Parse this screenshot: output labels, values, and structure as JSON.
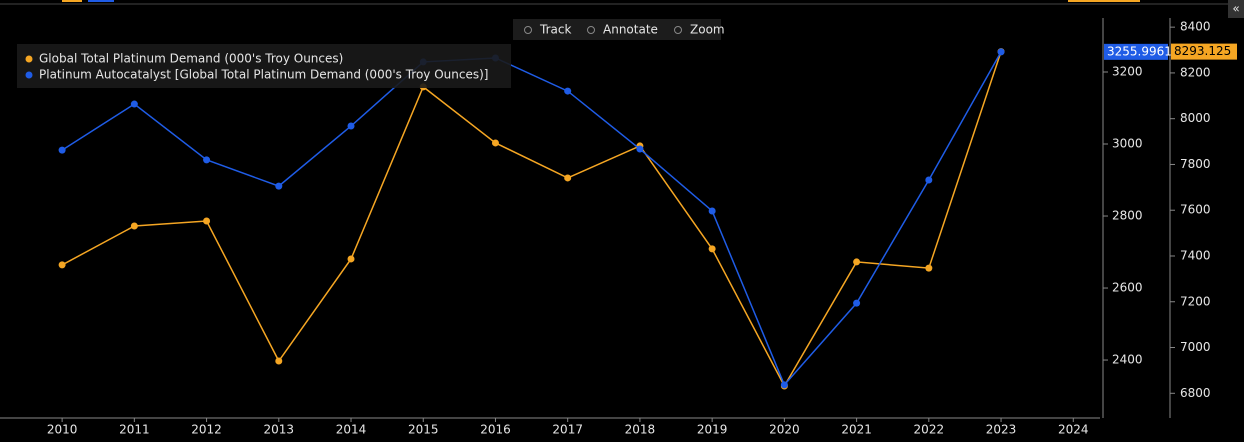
{
  "chart_data": {
    "type": "line",
    "toolbar": [
      "Track",
      "Annotate",
      "Zoom"
    ],
    "collapse_icon": "«",
    "x": [
      2010,
      2011,
      2012,
      2013,
      2014,
      2015,
      2016,
      2017,
      2018,
      2019,
      2020,
      2021,
      2022,
      2023
    ],
    "xlim": [
      2009.14,
      2024.37
    ],
    "xticks": [
      2010,
      2011,
      2012,
      2013,
      2014,
      2015,
      2016,
      2017,
      2018,
      2019,
      2020,
      2021,
      2022,
      2023,
      2024
    ],
    "ylim": [
      2239,
      3350
    ],
    "yticks": [
      2400,
      2600,
      2800,
      3000,
      3200
    ],
    "y2lim": [
      6692,
      8440
    ],
    "y2ticks": [
      6800,
      7000,
      7200,
      7400,
      7600,
      7800,
      8000,
      8200,
      8400
    ],
    "grid": false,
    "legend": "top-left",
    "series": [
      {
        "name": "Global Total Platinum Demand (000's Troy Ounces)",
        "color": "#f5a623",
        "axis": "y2",
        "values": [
          7361,
          7531,
          7553,
          6941,
          7387,
          8139,
          7894,
          7741,
          7881,
          7431,
          6832,
          7374,
          7347,
          8293.125
        ]
      },
      {
        "name": "Platinum Autocatalyst [Global Total Platinum Demand (000's Troy Ounces)]",
        "color": "#1f5ce6",
        "axis": "y",
        "values": [
          2983,
          3111,
          2956,
          2883,
          3050,
          3228,
          3239,
          3147,
          2986,
          2814,
          2331,
          2558,
          2900,
          3255.9961
        ]
      }
    ]
  }
}
